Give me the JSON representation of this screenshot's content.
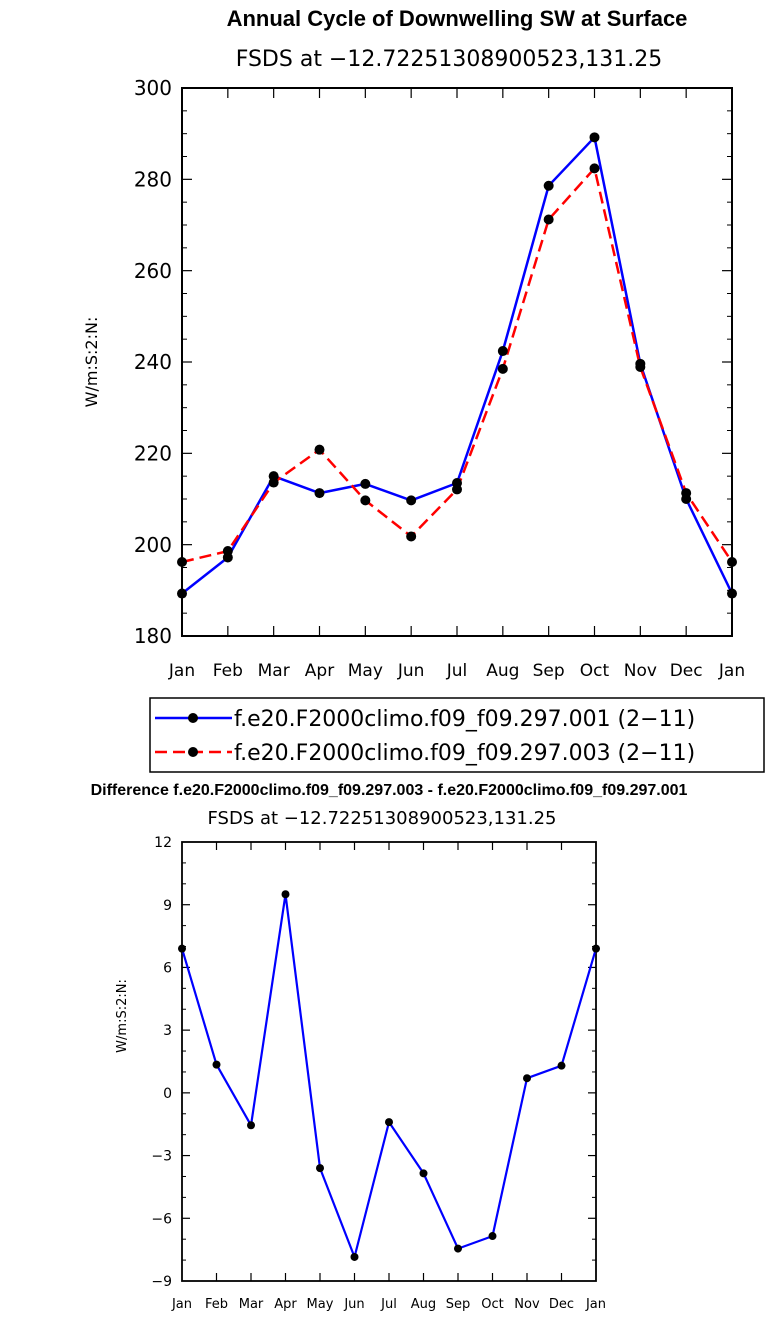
{
  "chart_data": [
    {
      "type": "line",
      "title": "Annual Cycle of Downwelling SW at Surface",
      "subtitle": "FSDS at −12.72251308900523,131.25",
      "ylabel": "W/m:S:2:N:",
      "ylim": [
        180,
        300
      ],
      "yticks": [
        180,
        200,
        220,
        240,
        260,
        280,
        300
      ],
      "categories": [
        "Jan",
        "Feb",
        "Mar",
        "Apr",
        "May",
        "Jun",
        "Jul",
        "Aug",
        "Sep",
        "Oct",
        "Nov",
        "Dec",
        "Jan"
      ],
      "series": [
        {
          "name": "f.e20.F2000climo.f09_f09.297.001 (2−11)",
          "color": "#0000ff",
          "style": "solid",
          "values": [
            189.3,
            197.2,
            215.0,
            211.3,
            213.3,
            209.7,
            213.5,
            242.4,
            278.6,
            289.2,
            239.6,
            210.0,
            189.3
          ]
        },
        {
          "name": "f.e20.F2000climo.f09_f09.297.003 (2−11)",
          "color": "#ff0000",
          "style": "dashed",
          "values": [
            196.2,
            198.6,
            213.6,
            220.8,
            209.7,
            201.8,
            212.1,
            238.5,
            271.2,
            282.4,
            238.9,
            211.3,
            196.2
          ]
        }
      ]
    },
    {
      "type": "line",
      "title": "Difference f.e20.F2000climo.f09_f09.297.003 - f.e20.F2000climo.f09_f09.297.001",
      "subtitle": "FSDS at −12.72251308900523,131.25",
      "ylabel": "W/m:S:2:N:",
      "ylim": [
        -9,
        12
      ],
      "yticks": [
        -9,
        -6,
        -3,
        0,
        3,
        6,
        9,
        12
      ],
      "ytick_labels": [
        "−9",
        "−6",
        "−3",
        "0",
        "3",
        "6",
        "9",
        "12"
      ],
      "categories": [
        "Jan",
        "Feb",
        "Mar",
        "Apr",
        "May",
        "Jun",
        "Jul",
        "Aug",
        "Sep",
        "Oct",
        "Nov",
        "Dec",
        "Jan"
      ],
      "series": [
        {
          "name": "difference",
          "color": "#0000ff",
          "style": "solid",
          "values": [
            6.9,
            1.35,
            -1.55,
            9.5,
            -3.6,
            -7.85,
            -1.4,
            -3.85,
            -7.45,
            -6.85,
            0.7,
            1.3,
            6.9
          ]
        }
      ]
    }
  ]
}
